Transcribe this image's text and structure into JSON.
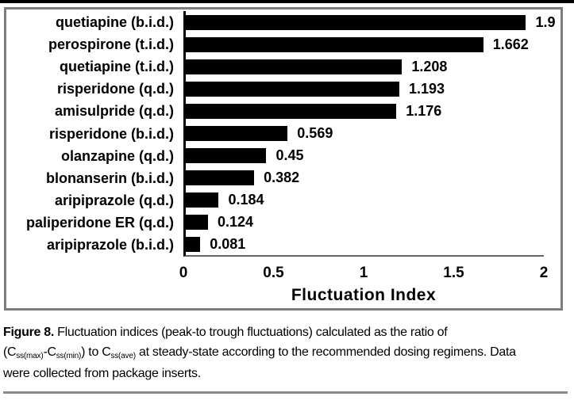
{
  "chart_data": {
    "type": "bar",
    "orientation": "horizontal",
    "title": "",
    "xlabel": "Fluctuation Index",
    "ylabel": "",
    "xlim": [
      0,
      2
    ],
    "grid": false,
    "legend": false,
    "bar_color": "#000000",
    "categories": [
      "quetiapine (b.i.d.)",
      "perospirone (t.i.d.)",
      "quetiapine (t.i.d.)",
      "risperidone (q.d.)",
      "amisulpride (q.d.)",
      "risperidone (b.i.d.)",
      "olanzapine (q.d.)",
      "blonanserin (b.i.d.)",
      "aripiprazole (q.d.)",
      "paliperidone ER (q.d.)",
      "aripiprazole (b.i.d.)"
    ],
    "values": [
      1.9,
      1.662,
      1.208,
      1.193,
      1.176,
      0.569,
      0.45,
      0.382,
      0.184,
      0.124,
      0.081
    ],
    "value_labels": [
      "1.9",
      "1.662",
      "1.208",
      "1.193",
      "1.176",
      "0.569",
      "0.45",
      "0.382",
      "0.184",
      "0.124",
      "0.081"
    ],
    "x_ticks": [
      {
        "label": "0",
        "value": 0
      },
      {
        "label": "0.5",
        "value": 0.5
      },
      {
        "label": "1",
        "value": 1
      },
      {
        "label": "1.5",
        "value": 1.5
      },
      {
        "label": "2",
        "value": 2
      }
    ]
  },
  "caption": {
    "lines": [
      [
        {
          "text": "Figure 8.",
          "style": "bold"
        },
        {
          "text": " Fluctuation indices (peak-to trough fluctuations) calculated as the ratio of",
          "style": ""
        }
      ],
      [
        {
          "text": "(C",
          "style": ""
        },
        {
          "text": "ss(max)",
          "style": "sub"
        },
        {
          "text": "-C",
          "style": ""
        },
        {
          "text": "ss(min)",
          "style": "sub"
        },
        {
          "text": ") to C",
          "style": ""
        },
        {
          "text": "ss(ave)",
          "style": "sub"
        },
        {
          "text": " at steady-state according to the recommended dosing regimens. Data",
          "style": ""
        }
      ],
      [
        {
          "text": "were collected from package inserts.",
          "style": ""
        }
      ]
    ]
  }
}
